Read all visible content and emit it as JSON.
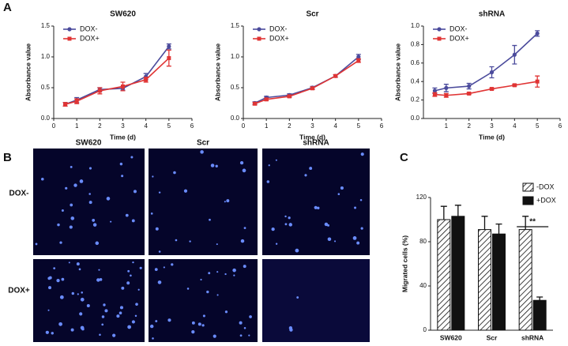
{
  "panel_labels": [
    "A",
    "B",
    "C"
  ],
  "chart_data": [
    {
      "type": "line",
      "title": "SW620",
      "xlabel": "Time (d)",
      "ylabel": "Absorbance value",
      "x": [
        0.5,
        1,
        2,
        3,
        4,
        5
      ],
      "xlim": [
        0,
        6
      ],
      "xticks": [
        0,
        1,
        2,
        3,
        4,
        5,
        6
      ],
      "ylim": [
        0,
        1.5
      ],
      "yticks": [
        {
          "value": 0,
          "label": "0.0"
        },
        0.5,
        {
          "value": 1,
          "label": "1.0"
        },
        1.5
      ],
      "legend": "upper left",
      "series": [
        {
          "name": "DOX-",
          "color": "#4b4b9c",
          "marker": "circle",
          "values": [
            0.23,
            0.3,
            0.47,
            0.49,
            0.68,
            1.17
          ],
          "errors": [
            0.03,
            0.04,
            0.03,
            0.03,
            0.05,
            0.04
          ]
        },
        {
          "name": "DOX+",
          "color": "#e03434",
          "marker": "square",
          "values": [
            0.23,
            0.28,
            0.45,
            0.52,
            0.63,
            0.98
          ],
          "errors": [
            0.03,
            0.04,
            0.05,
            0.07,
            0.04,
            0.13
          ]
        }
      ]
    },
    {
      "type": "line",
      "title": "Scr",
      "xlabel": "Time (d)",
      "ylabel": "Absorbance value",
      "x": [
        0.5,
        1,
        2,
        3,
        4,
        5
      ],
      "xlim": [
        0,
        6
      ],
      "xticks": [
        0,
        1,
        2,
        3,
        4,
        5,
        6
      ],
      "ylim": [
        0,
        1.5
      ],
      "yticks": [
        {
          "value": 0,
          "label": "0.0"
        },
        0.5,
        {
          "value": 1,
          "label": "1.0"
        },
        1.5
      ],
      "legend": "upper left",
      "series": [
        {
          "name": "DOX-",
          "color": "#4b4b9c",
          "marker": "circle",
          "values": [
            0.25,
            0.34,
            0.38,
            0.5,
            0.69,
            1.0
          ],
          "errors": [
            0.02,
            0.02,
            0.02,
            0.02,
            0.02,
            0.04
          ]
        },
        {
          "name": "DOX+",
          "color": "#e03434",
          "marker": "square",
          "values": [
            0.24,
            0.31,
            0.36,
            0.49,
            0.69,
            0.94
          ],
          "errors": [
            0.02,
            0.02,
            0.02,
            0.02,
            0.02,
            0.03
          ]
        }
      ]
    },
    {
      "type": "line",
      "title": "shRNA",
      "xlabel": "Time (d)",
      "ylabel": "Absorbance value",
      "x": [
        0.5,
        1,
        2,
        3,
        4,
        5
      ],
      "xlim": [
        0,
        6
      ],
      "xticks": [
        1,
        2,
        3,
        4,
        5,
        6
      ],
      "ylim": [
        0,
        1
      ],
      "yticks": [
        {
          "value": 0,
          "label": "0.0"
        },
        0.2,
        0.4,
        0.6,
        0.8,
        {
          "value": 1,
          "label": "1.0"
        }
      ],
      "legend": "upper left",
      "series": [
        {
          "name": "DOX-",
          "color": "#4b4b9c",
          "marker": "circle",
          "values": [
            0.3,
            0.33,
            0.35,
            0.5,
            0.69,
            0.92
          ],
          "errors": [
            0.03,
            0.04,
            0.03,
            0.06,
            0.1,
            0.03
          ]
        },
        {
          "name": "DOX+",
          "color": "#e03434",
          "marker": "square",
          "values": [
            0.26,
            0.25,
            0.27,
            0.32,
            0.36,
            0.4
          ],
          "errors": [
            0.02,
            0.02,
            0.01,
            0.01,
            0.01,
            0.06
          ]
        }
      ]
    },
    {
      "type": "bar",
      "ylabel": "Migrated cells (%)",
      "categories": [
        "SW620",
        "Scr",
        "shRNA"
      ],
      "ylim": [
        0,
        120
      ],
      "yticks": [
        0,
        40,
        80,
        120
      ],
      "legend": "upper right",
      "annotation": "**",
      "series": [
        {
          "name": "-DOX",
          "color": "#ffffff",
          "hatch": true,
          "values": [
            100,
            91,
            91
          ],
          "errors": [
            12,
            12,
            12
          ]
        },
        {
          "name": "+DOX",
          "color": "#111111",
          "hatch": false,
          "values": [
            103,
            87,
            27
          ],
          "errors": [
            10,
            9,
            3
          ]
        }
      ]
    }
  ],
  "image_grid": {
    "columns": [
      "SW620",
      "Scr",
      "shRNA"
    ],
    "rows": [
      "DOX-",
      "DOX+"
    ]
  }
}
